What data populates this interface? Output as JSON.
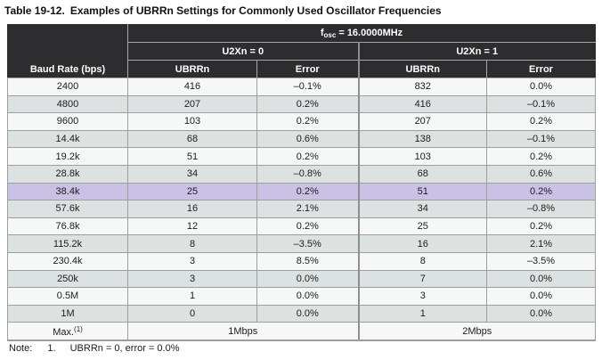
{
  "title": {
    "label": "Table 19-12.",
    "text": "Examples of UBRRn Settings for Commonly Used Oscillator Frequencies"
  },
  "table": {
    "fosc": {
      "prefix": "f",
      "sub": "osc",
      "suffix": " = 16.0000MHz"
    },
    "group_headers": [
      "U2Xn = 0",
      "U2Xn = 1"
    ],
    "col_headers": [
      "Baud Rate (bps)",
      "UBRRn",
      "Error",
      "UBRRn",
      "Error"
    ],
    "rows": [
      [
        "2400",
        "416",
        "–0.1%",
        "832",
        "0.0%"
      ],
      [
        "4800",
        "207",
        "0.2%",
        "416",
        "–0.1%"
      ],
      [
        "9600",
        "103",
        "0.2%",
        "207",
        "0.2%"
      ],
      [
        "14.4k",
        "68",
        "0.6%",
        "138",
        "–0.1%"
      ],
      [
        "19.2k",
        "51",
        "0.2%",
        "103",
        "0.2%"
      ],
      [
        "28.8k",
        "34",
        "–0.8%",
        "68",
        "0.6%"
      ],
      [
        "38.4k",
        "25",
        "0.2%",
        "51",
        "0.2%"
      ],
      [
        "57.6k",
        "16",
        "2.1%",
        "34",
        "–0.8%"
      ],
      [
        "76.8k",
        "12",
        "0.2%",
        "25",
        "0.2%"
      ],
      [
        "115.2k",
        "8",
        "–3.5%",
        "16",
        "2.1%"
      ],
      [
        "230.4k",
        "3",
        "8.5%",
        "8",
        "–3.5%"
      ],
      [
        "250k",
        "3",
        "0.0%",
        "7",
        "0.0%"
      ],
      [
        "0.5M",
        "1",
        "0.0%",
        "3",
        "0.0%"
      ],
      [
        "1M",
        "0",
        "0.0%",
        "1",
        "0.0%"
      ]
    ],
    "highlight_row_index": 6,
    "max_row": {
      "label": "Max.",
      "sup": "(1)",
      "u2x0": "1Mbps",
      "u2x1": "2Mbps"
    },
    "note": {
      "label": "Note:",
      "num": "1.",
      "text": "UBRRn = 0, error = 0.0%"
    }
  },
  "colors": {
    "header_bg": "#2d2d2f",
    "row_light": "#f6f8f8",
    "row_shaded": "#dce2e1",
    "row_highlight": "#c9c2e4",
    "border": "#9e9e9e"
  }
}
